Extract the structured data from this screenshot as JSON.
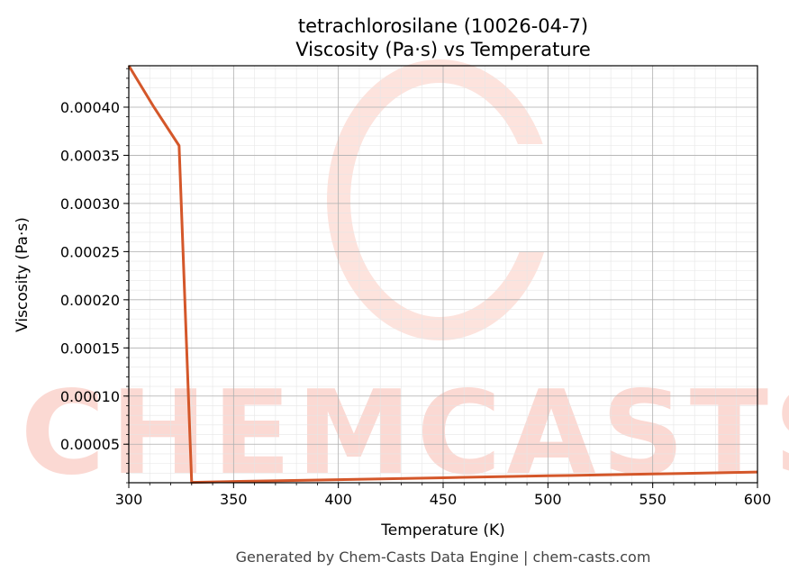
{
  "chart_data": {
    "type": "line",
    "title_line1": "tetrachlorosilane (10026-04-7)",
    "title_line2": "Viscosity (Pa·s) vs Temperature",
    "xlabel": "Temperature (K)",
    "ylabel": "Viscosity (Pa·s)",
    "xlim": [
      300,
      600
    ],
    "ylim": [
      1e-05,
      0.000443
    ],
    "x_ticks": [
      300,
      350,
      400,
      450,
      500,
      550,
      600
    ],
    "x_tick_labels": [
      "300",
      "350",
      "400",
      "450",
      "500",
      "550",
      "600"
    ],
    "y_ticks": [
      5e-05,
      0.0001,
      0.00015,
      0.0002,
      0.00025,
      0.0003,
      0.00035,
      0.0004
    ],
    "y_tick_labels": [
      "0.00005",
      "0.00010",
      "0.00015",
      "0.00020",
      "0.00025",
      "0.00030",
      "0.00035",
      "0.00040"
    ],
    "grid": true,
    "line_color": "#d4572a",
    "series": [
      {
        "x": [
          300,
          312,
          324,
          330,
          350,
          400,
          450,
          500,
          550,
          600
        ],
        "y": [
          0.000443,
          0.0004,
          0.00036,
          1.03e-05,
          1.13e-05,
          1.32e-05,
          1.52e-05,
          1.72e-05,
          1.91e-05,
          2.11e-05
        ]
      }
    ]
  },
  "watermark": {
    "text": "CHEMCASTS",
    "color": "#fbd9d3"
  },
  "footer": "Generated by Chem-Casts Data Engine | chem-casts.com"
}
